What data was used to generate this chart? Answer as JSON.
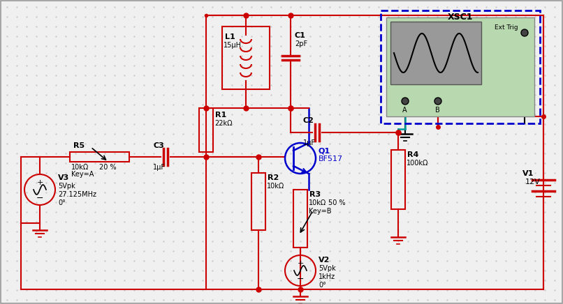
{
  "bg_color": "#f0f0f0",
  "dot_color": "#cccccc",
  "red": "#cc0000",
  "blue": "#0000cc",
  "cyan": "#009999",
  "black": "#000000",
  "green_bg": "#b8d8b8",
  "gray_screen": "#aaaaaa",
  "components": {
    "V1_label": "V1",
    "V1_val": "12V",
    "V2_label": "V2",
    "V2_val1": "5Vpk",
    "V2_val2": "1kHz",
    "V2_val3": "0°",
    "V3_label": "V3",
    "V3_val1": "5Vpk",
    "V3_val2": "27.125MHz",
    "V3_val3": "0°",
    "R1_label": "R1",
    "R1_val": "22kΩ",
    "R2_label": "R2",
    "R2_val": "10kΩ",
    "R3_label": "R3",
    "R3_val": "10kΩ",
    "R3_key": "Key=B",
    "R3_pct": "50 %",
    "R4_label": "R4",
    "R4_val": "100kΩ",
    "R5_label": "R5",
    "R5_val": "10kΩ",
    "R5_key": "Key=A",
    "R5_pct": "20 %",
    "C1_label": "C1",
    "C1_val": "2pF",
    "C2_label": "C2",
    "C2_val": "1μF",
    "C3_label": "C3",
    "C3_val": "1μF",
    "L1_label": "L1",
    "L1_val": "15μH",
    "Q1_label": "Q1",
    "Q1_val": "BF517",
    "XSC1_label": "XSC1",
    "Ext_Trig": "Ext Trig",
    "A_label": "A",
    "B_label": "B"
  }
}
